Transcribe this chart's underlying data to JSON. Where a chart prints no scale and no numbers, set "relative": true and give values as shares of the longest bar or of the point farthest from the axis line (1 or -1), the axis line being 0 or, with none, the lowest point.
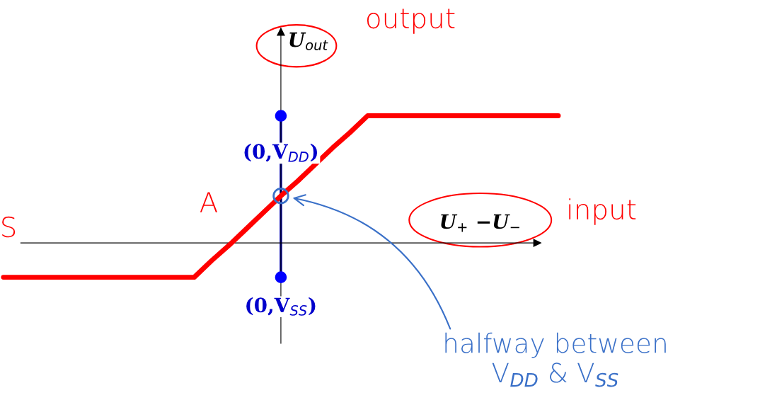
{
  "chart_data": {
    "type": "line",
    "relative": true,
    "xlabel": "U$_{+}$ −U$_{−}$",
    "ylabel": "U$_{out}$",
    "categories": [
      null,
      null,
      null,
      null,
      null,
      null,
      null,
      null,
      null,
      null,
      null,
      null,
      null,
      null,
      null,
      null,
      null,
      null,
      null,
      null,
      null,
      null,
      null,
      null,
      null,
      null,
      null,
      null,
      null,
      null,
      null,
      null,
      null
    ],
    "grid": false,
    "legend": false,
    "series": [
      {
        "color": "#ff0000",
        "marker": "none",
        "values": [
          -0.27,
          -0.27,
          -0.27,
          -0.27,
          -0.27,
          -0.27,
          -0.27,
          -0.27,
          -0.27,
          -0.27,
          -0.27,
          -0.27,
          -0.14,
          -0.02,
          0.11,
          0.24,
          0.37,
          0.49,
          0.62,
          0.75,
          0.87,
          1,
          1,
          1,
          1,
          1,
          1,
          1,
          1,
          1,
          1,
          1,
          1
        ]
      }
    ],
    "annotations": [
      "(0,V$_{DD}$)",
      "(0,V$_{SS}$)",
      "output",
      "input",
      "A",
      "S",
      "halfway between\nV$_{DD}$ & V$_{SS}$"
    ]
  }
}
